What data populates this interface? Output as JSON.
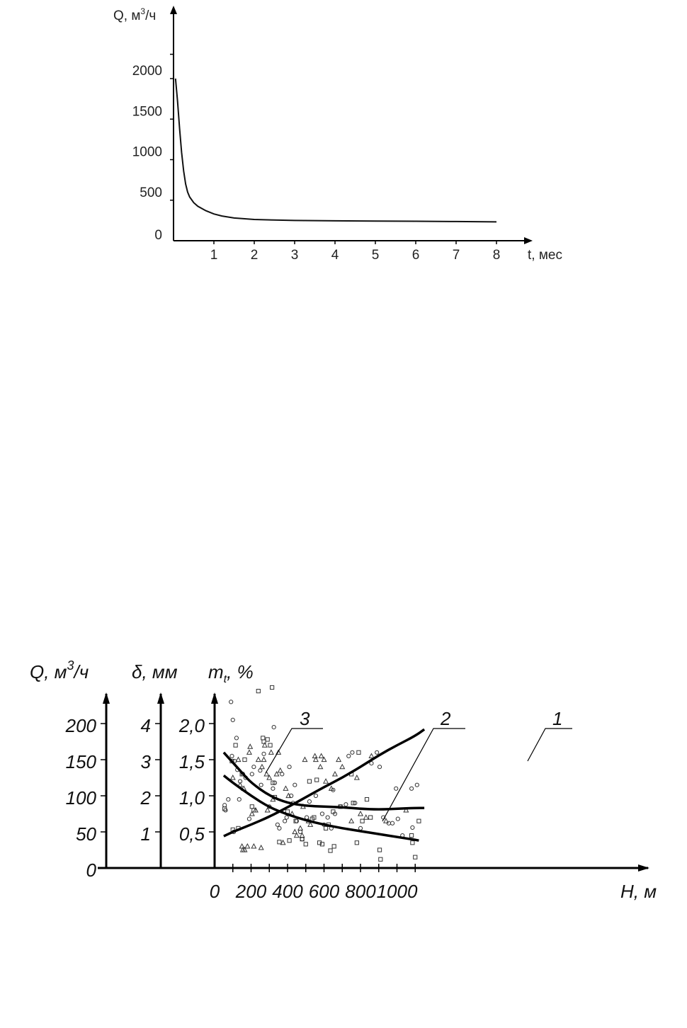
{
  "chart_data": [
    {
      "type": "line",
      "title": "",
      "ylabel": "Q, м",
      "ylabel_sup": "3",
      "ylabel_suffix": "/ч",
      "xlabel": "t, мес",
      "xlim": [
        0,
        8.5
      ],
      "ylim": [
        0,
        2500
      ],
      "x_ticks": [
        "1",
        "2",
        "3",
        "4",
        "5",
        "6",
        "7",
        "8"
      ],
      "y_ticks": [
        "0",
        "500",
        "1000",
        "1500",
        "2000"
      ],
      "grid": false,
      "series": [
        {
          "x": [
            0.05,
            0.1,
            0.15,
            0.2,
            0.25,
            0.3,
            0.35,
            0.4,
            0.5,
            0.6,
            0.8,
            1.0,
            1.2,
            1.5,
            2.0,
            2.5,
            3,
            4,
            5,
            6,
            7,
            8
          ],
          "y": [
            2000,
            1720,
            1380,
            1090,
            860,
            700,
            600,
            540,
            470,
            425,
            370,
            330,
            305,
            280,
            262,
            255,
            250,
            245,
            242,
            240,
            237,
            232
          ]
        }
      ]
    },
    {
      "type": "scatter",
      "title": "",
      "xlabel": "H, м",
      "xlim": [
        0,
        1200
      ],
      "x_ticks": [
        "0",
        "200",
        "400",
        "600",
        "800",
        "1000"
      ],
      "y_axes": [
        {
          "label": "Q, м",
          "label_sup": "3",
          "label_suffix": "/ч",
          "ticks": [
            "0",
            "50",
            "100",
            "150",
            "200"
          ],
          "range": [
            0,
            250
          ]
        },
        {
          "label": "δ, мм",
          "ticks": [
            "1",
            "2",
            "3",
            "4"
          ],
          "range": [
            0,
            5
          ]
        },
        {
          "label": "m",
          "label_sub": "t",
          "label_suffix": ", %",
          "ticks": [
            "0,5",
            "1,0",
            "1,5",
            "2,0"
          ],
          "range": [
            0,
            2.5
          ]
        }
      ],
      "grid": false,
      "series": [
        {
          "name": "1",
          "x": [
            50,
            100,
            200,
            300,
            400,
            500,
            600,
            700,
            800,
            900,
            1000,
            1100,
            1150
          ],
          "y": [
            44,
            50,
            60,
            71,
            84,
            98,
            112,
            125,
            140,
            156,
            170,
            183,
            192
          ]
        },
        {
          "name": "2",
          "x": [
            50,
            100,
            200,
            300,
            400,
            500,
            600,
            700,
            800,
            900,
            1000,
            1100,
            1120
          ],
          "y": [
            128,
            118,
            100,
            84,
            74,
            66,
            60,
            55,
            51,
            47,
            43,
            39,
            38
          ]
        },
        {
          "name": "3",
          "x": [
            50,
            100,
            150,
            200,
            300,
            400,
            500,
            600,
            700,
            800,
            900,
            1000,
            1100,
            1150
          ],
          "y": [
            160,
            146,
            132,
            118,
            100,
            90,
            86,
            85,
            84,
            82,
            81,
            82,
            83,
            83
          ]
        }
      ],
      "points_circle": [
        [
          55,
          87
        ],
        [
          60,
          80
        ],
        [
          75,
          95
        ],
        [
          90,
          230
        ],
        [
          95,
          155
        ],
        [
          100,
          205
        ],
        [
          105,
          50
        ],
        [
          110,
          148
        ],
        [
          120,
          180
        ],
        [
          125,
          136
        ],
        [
          135,
          95
        ],
        [
          140,
          120
        ],
        [
          155,
          130
        ],
        [
          170,
          125
        ],
        [
          190,
          68
        ],
        [
          205,
          130
        ],
        [
          215,
          140
        ],
        [
          250,
          135
        ],
        [
          255,
          115
        ],
        [
          270,
          158
        ],
        [
          300,
          85
        ],
        [
          320,
          110
        ],
        [
          325,
          195
        ],
        [
          330,
          118
        ],
        [
          345,
          60
        ],
        [
          355,
          55
        ],
        [
          370,
          130
        ],
        [
          385,
          65
        ],
        [
          395,
          70
        ],
        [
          410,
          140
        ],
        [
          420,
          100
        ],
        [
          430,
          90
        ],
        [
          440,
          115
        ],
        [
          450,
          65
        ],
        [
          470,
          50
        ],
        [
          480,
          40
        ],
        [
          505,
          70
        ],
        [
          520,
          92
        ],
        [
          555,
          100
        ],
        [
          590,
          75
        ],
        [
          600,
          60
        ],
        [
          620,
          70
        ],
        [
          640,
          55
        ],
        [
          650,
          108
        ],
        [
          660,
          75
        ],
        [
          690,
          85
        ],
        [
          720,
          88
        ],
        [
          735,
          155
        ],
        [
          755,
          160
        ],
        [
          770,
          90
        ],
        [
          800,
          55
        ],
        [
          860,
          145
        ],
        [
          890,
          160
        ],
        [
          905,
          140
        ],
        [
          925,
          70
        ],
        [
          955,
          62
        ],
        [
          975,
          62
        ],
        [
          995,
          110
        ],
        [
          1005,
          68
        ],
        [
          1030,
          45
        ],
        [
          1080,
          110
        ],
        [
          1085,
          56
        ],
        [
          1110,
          115
        ]
      ],
      "points_square": [
        [
          55,
          82
        ],
        [
          95,
          148
        ],
        [
          100,
          53
        ],
        [
          115,
          170
        ],
        [
          130,
          55
        ],
        [
          150,
          130
        ],
        [
          165,
          150
        ],
        [
          205,
          85
        ],
        [
          215,
          80
        ],
        [
          240,
          245
        ],
        [
          265,
          180
        ],
        [
          270,
          175
        ],
        [
          290,
          178
        ],
        [
          305,
          170
        ],
        [
          315,
          250
        ],
        [
          320,
          118
        ],
        [
          330,
          98
        ],
        [
          355,
          36
        ],
        [
          400,
          78
        ],
        [
          410,
          38
        ],
        [
          445,
          65
        ],
        [
          480,
          40
        ],
        [
          500,
          33
        ],
        [
          520,
          120
        ],
        [
          535,
          68
        ],
        [
          545,
          70
        ],
        [
          560,
          122
        ],
        [
          575,
          35
        ],
        [
          590,
          33
        ],
        [
          610,
          55
        ],
        [
          625,
          60
        ],
        [
          635,
          24
        ],
        [
          650,
          78
        ],
        [
          655,
          30
        ],
        [
          690,
          85
        ],
        [
          750,
          130
        ],
        [
          760,
          90
        ],
        [
          780,
          35
        ],
        [
          790,
          160
        ],
        [
          810,
          65
        ],
        [
          835,
          95
        ],
        [
          855,
          70
        ],
        [
          905,
          25
        ],
        [
          910,
          12
        ],
        [
          1080,
          45
        ],
        [
          1085,
          35
        ],
        [
          1100,
          15
        ],
        [
          1120,
          65
        ]
      ],
      "points_triangle": [
        [
          100,
          125
        ],
        [
          130,
          150
        ],
        [
          140,
          115
        ],
        [
          150,
          30
        ],
        [
          155,
          25
        ],
        [
          160,
          110
        ],
        [
          165,
          25
        ],
        [
          180,
          30
        ],
        [
          190,
          160
        ],
        [
          195,
          168
        ],
        [
          205,
          75
        ],
        [
          215,
          30
        ],
        [
          225,
          80
        ],
        [
          240,
          150
        ],
        [
          255,
          28
        ],
        [
          260,
          140
        ],
        [
          270,
          150
        ],
        [
          275,
          170
        ],
        [
          285,
          130
        ],
        [
          290,
          80
        ],
        [
          300,
          125
        ],
        [
          310,
          160
        ],
        [
          320,
          95
        ],
        [
          340,
          130
        ],
        [
          350,
          160
        ],
        [
          360,
          135
        ],
        [
          375,
          35
        ],
        [
          390,
          110
        ],
        [
          405,
          100
        ],
        [
          425,
          75
        ],
        [
          440,
          50
        ],
        [
          450,
          45
        ],
        [
          470,
          55
        ],
        [
          480,
          45
        ],
        [
          485,
          85
        ],
        [
          495,
          150
        ],
        [
          515,
          65
        ],
        [
          525,
          60
        ],
        [
          550,
          155
        ],
        [
          555,
          150
        ],
        [
          580,
          140
        ],
        [
          585,
          155
        ],
        [
          600,
          150
        ],
        [
          610,
          120
        ],
        [
          640,
          110
        ],
        [
          660,
          130
        ],
        [
          680,
          150
        ],
        [
          700,
          140
        ],
        [
          750,
          65
        ],
        [
          780,
          125
        ],
        [
          800,
          75
        ],
        [
          830,
          70
        ],
        [
          860,
          155
        ],
        [
          940,
          65
        ],
        [
          1050,
          80
        ]
      ],
      "labels": [
        "1",
        "2",
        "3"
      ]
    }
  ]
}
